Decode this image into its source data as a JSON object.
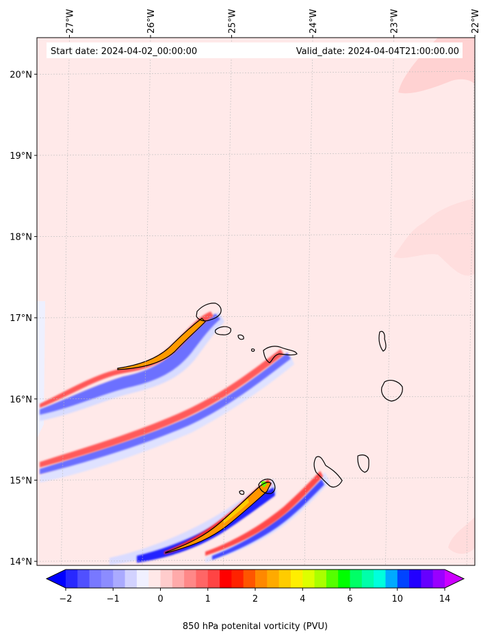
{
  "chart_data": {
    "type": "heatmap",
    "title": "",
    "start_label": "Start date: 2024-04-02_00:00:00",
    "valid_label": "Valid_date: 2024-04-04T21:00:00.00",
    "colorbar_label": "850 hPa potenital vorticity (PVU)",
    "lon_range": [
      -27.35,
      -21.95
    ],
    "lat_range": [
      13.95,
      20.45
    ],
    "lon_ticks": [
      {
        "value": -27,
        "label": "27°W"
      },
      {
        "value": -26,
        "label": "26°W"
      },
      {
        "value": -25,
        "label": "25°W"
      },
      {
        "value": -24,
        "label": "24°W"
      },
      {
        "value": -23,
        "label": "23°W"
      },
      {
        "value": -22,
        "label": "22°W"
      }
    ],
    "lat_ticks": [
      {
        "value": 20,
        "label": "20°N"
      },
      {
        "value": 19,
        "label": "19°N"
      },
      {
        "value": 18,
        "label": "18°N"
      },
      {
        "value": 17,
        "label": "17°N"
      },
      {
        "value": 16,
        "label": "16°N"
      },
      {
        "value": 15,
        "label": "15°N"
      },
      {
        "value": 14,
        "label": "14°N"
      }
    ],
    "colorbar_ticks": [
      {
        "index": 0,
        "label": "−2"
      },
      {
        "index": 2,
        "label": "−1"
      },
      {
        "index": 4,
        "label": "0"
      },
      {
        "index": 6,
        "label": "1"
      },
      {
        "index": 8,
        "label": "2"
      },
      {
        "index": 10,
        "label": "4"
      },
      {
        "index": 12,
        "label": "6"
      },
      {
        "index": 14,
        "label": "10"
      },
      {
        "index": 16,
        "label": "14"
      }
    ],
    "colorbar_colors": [
      "#0000ff",
      "#2828ff",
      "#5050ff",
      "#7878ff",
      "#8c8cff",
      "#aaaaff",
      "#d2d2ff",
      "#f0f0ff",
      "#ffe8e8",
      "#ffcccc",
      "#ffaaaa",
      "#ff8888",
      "#ff6666",
      "#ff4444",
      "#ff0000",
      "#ff2200",
      "#ff5500",
      "#ff8800",
      "#ffaa00",
      "#ffcc00",
      "#ffee00",
      "#ddff00",
      "#aaff00",
      "#55ff00",
      "#00ff00",
      "#00ff66",
      "#00ffaa",
      "#00ffdd",
      "#00aaff",
      "#0044ff",
      "#2200ff",
      "#6600ff",
      "#9900ff",
      "#cc00ff"
    ],
    "background_pv_color": "#ffe9e9",
    "features": [
      {
        "name": "pv-streamer-santo-antao",
        "kind": "positive-band",
        "path_lonlat": [
          [
            -27.3,
            15.95
          ],
          [
            -26.8,
            16.18
          ],
          [
            -26.3,
            16.33
          ],
          [
            -25.9,
            16.45
          ],
          [
            -25.5,
            16.7
          ],
          [
            -25.25,
            16.95
          ]
        ]
      },
      {
        "name": "pv-streamer-sao-nicolau",
        "kind": "positive-band",
        "path_lonlat": [
          [
            -27.3,
            15.23
          ],
          [
            -26.5,
            15.42
          ],
          [
            -25.6,
            15.72
          ],
          [
            -24.9,
            16.1
          ],
          [
            -24.45,
            16.5
          ]
        ]
      },
      {
        "name": "pv-streamer-santiago",
        "kind": "high-band",
        "path_lonlat": [
          [
            -25.7,
            14.1
          ],
          [
            -25.2,
            14.3
          ],
          [
            -24.95,
            14.6
          ],
          [
            -24.65,
            14.97
          ]
        ]
      },
      {
        "name": "pv-streamer-fogo",
        "kind": "positive-band",
        "path_lonlat": [
          [
            -25.0,
            14.05
          ],
          [
            -24.6,
            14.3
          ],
          [
            -24.2,
            14.7
          ],
          [
            -23.75,
            15.1
          ]
        ]
      }
    ],
    "islands": [
      {
        "name": "Santo Antao",
        "lon": -25.2,
        "lat": 17.05
      },
      {
        "name": "Sao Vicente",
        "lon": -25.0,
        "lat": 16.83
      },
      {
        "name": "Sao Nicolau",
        "lon": -24.3,
        "lat": 16.6
      },
      {
        "name": "Sal",
        "lon": -22.95,
        "lat": 16.7
      },
      {
        "name": "Boa Vista",
        "lon": -22.83,
        "lat": 16.08
      },
      {
        "name": "Maio",
        "lon": -23.15,
        "lat": 15.2
      },
      {
        "name": "Santiago",
        "lon": -23.65,
        "lat": 15.05
      },
      {
        "name": "Fogo",
        "lon": -24.4,
        "lat": 14.92
      },
      {
        "name": "Brava",
        "lon": -24.7,
        "lat": 14.85
      }
    ]
  }
}
